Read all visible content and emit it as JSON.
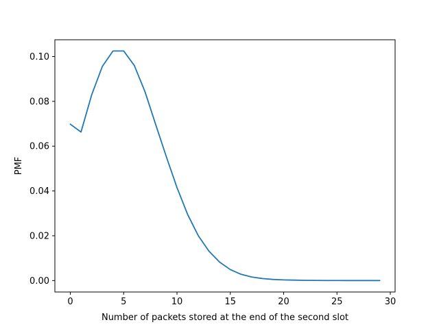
{
  "chart_data": {
    "type": "line",
    "title": "",
    "xlabel": "Number of packets stored at the end of the second slot",
    "ylabel": "PMF",
    "xlim": [
      -1.45,
      30.45
    ],
    "ylim": [
      -0.0051,
      0.1075
    ],
    "x_ticks": [
      0,
      5,
      10,
      15,
      20,
      25,
      30
    ],
    "x_tick_labels": [
      "0",
      "5",
      "10",
      "15",
      "20",
      "25",
      "30"
    ],
    "y_ticks": [
      0.0,
      0.02,
      0.04,
      0.06,
      0.08,
      0.1
    ],
    "y_tick_labels": [
      "0.00",
      "0.02",
      "0.04",
      "0.06",
      "0.08",
      "0.10"
    ],
    "grid": false,
    "line_color": "#1f77b4",
    "series": [
      {
        "x": [
          0,
          1,
          2,
          3,
          4,
          5,
          6,
          7,
          8,
          9,
          10,
          11,
          12,
          13,
          14,
          15,
          16,
          17,
          18,
          19,
          20,
          21,
          22,
          23,
          24,
          25,
          26,
          27,
          28,
          29
        ],
        "values": [
          0.0698,
          0.0663,
          0.0829,
          0.0956,
          0.1025,
          0.1025,
          0.096,
          0.0843,
          0.0697,
          0.0553,
          0.0415,
          0.0295,
          0.02,
          0.0131,
          0.0082,
          0.0049,
          0.0028,
          0.0016,
          0.0009,
          0.0005,
          0.0003,
          0.0002,
          0.0001,
          6e-05,
          3e-05,
          2e-05,
          1e-05,
          5e-06,
          3e-06,
          1e-06
        ]
      }
    ]
  }
}
